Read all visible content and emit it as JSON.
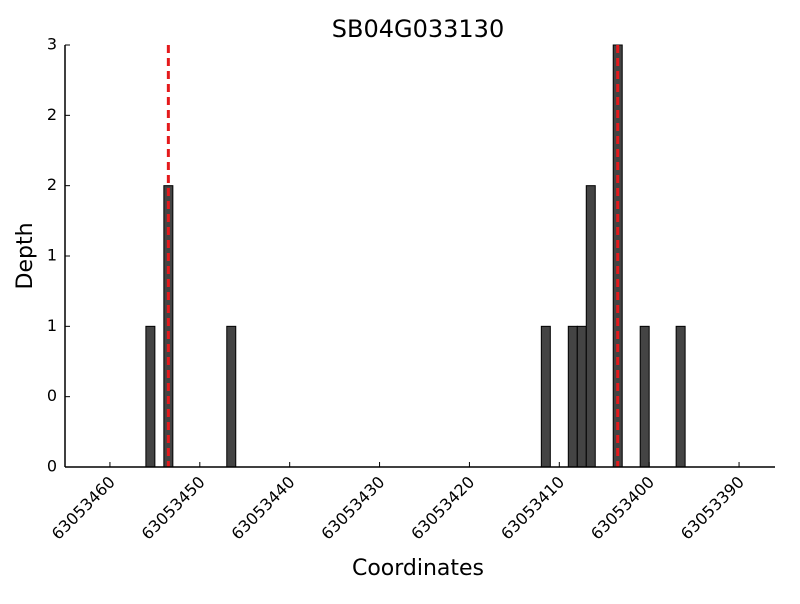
{
  "chart_data": {
    "type": "bar",
    "title": "SB04G033130",
    "x_label": "Coordinates",
    "y_label": "Depth",
    "x": [
      63053455,
      63053453,
      63053446,
      63053411,
      63053408,
      63053407,
      63053406,
      63053403,
      63053400,
      63053396
    ],
    "values": [
      1,
      2,
      1,
      1,
      1,
      1,
      2,
      3,
      1,
      1
    ],
    "bar_width": 1,
    "color": "#444444",
    "xlim": [
      63053465,
      63053386
    ],
    "xticks": [
      63053460,
      63053450,
      63053440,
      63053430,
      63053420,
      63053410,
      63053400,
      63053390
    ],
    "ylim": [
      0,
      3
    ],
    "yticks": [
      0,
      {
        "value": 0.5,
        "label": "0"
      },
      1,
      {
        "value": 1.5,
        "label": "1"
      },
      2,
      {
        "value": 2.5,
        "label": "2"
      },
      3
    ],
    "vlines": [
      63053453.5,
      63053403.5
    ],
    "vline_color": "#e41a1c"
  }
}
